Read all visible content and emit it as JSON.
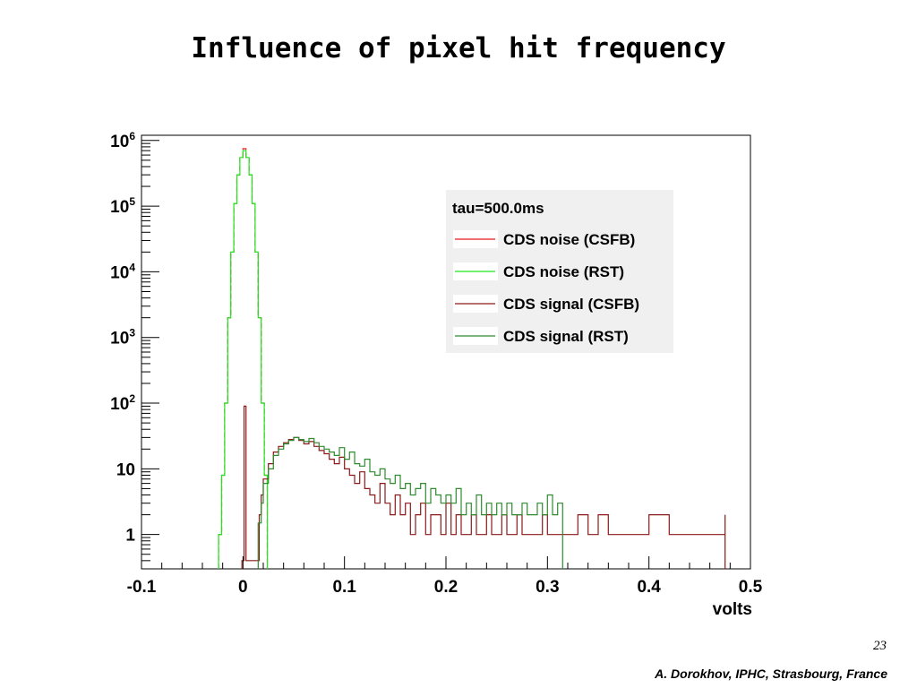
{
  "slide": {
    "title": "Influence of pixel hit frequency",
    "page_number": "23",
    "footer": "A. Dorokhov,  IPHC, Strasbourg, France"
  },
  "chart_data": {
    "type": "line",
    "title": "",
    "xlabel": "volts",
    "ylabel": "",
    "xlim": [
      -0.1,
      0.5
    ],
    "ylim": [
      0.3,
      1200000
    ],
    "y_scale": "log",
    "x_ticks": [
      "-0.1",
      "0",
      "0.1",
      "0.2",
      "0.3",
      "0.4",
      "0.5"
    ],
    "y_ticks": [
      {
        "value": 1,
        "base": "1",
        "exp": ""
      },
      {
        "value": 10,
        "base": "10",
        "exp": ""
      },
      {
        "value": 100,
        "base": "10",
        "exp": "2"
      },
      {
        "value": 1000,
        "base": "10",
        "exp": "3"
      },
      {
        "value": 10000,
        "base": "10",
        "exp": "4"
      },
      {
        "value": 100000,
        "base": "10",
        "exp": "5"
      },
      {
        "value": 1000000,
        "base": "10",
        "exp": "6"
      }
    ],
    "legend": {
      "position": "top-right",
      "header": "tau=500.0ms",
      "entries": [
        "CDS noise (CSFB)",
        "CDS noise (RST)",
        "CDS signal (CSFB)",
        "CDS signal (RST)"
      ]
    },
    "series": [
      {
        "name": "CDS noise (CSFB)",
        "color": "#e8161c",
        "dash": "6,3",
        "x": [
          -0.024,
          -0.021,
          -0.018,
          -0.015,
          -0.012,
          -0.009,
          -0.006,
          -0.003,
          0.0,
          0.003,
          0.006,
          0.009,
          0.012,
          0.015,
          0.018,
          0.021,
          0.024
        ],
        "y": [
          1,
          8,
          100,
          2000,
          20000,
          110000,
          300000,
          550000,
          750000,
          550000,
          300000,
          110000,
          20000,
          2000,
          100,
          8,
          1
        ]
      },
      {
        "name": "CDS noise (RST)",
        "color": "#1ee81e",
        "dash": "",
        "x": [
          -0.024,
          -0.021,
          -0.018,
          -0.015,
          -0.012,
          -0.009,
          -0.006,
          -0.003,
          0.0,
          0.003,
          0.006,
          0.009,
          0.012,
          0.015,
          0.018,
          0.021,
          0.024
        ],
        "y": [
          1,
          8,
          100,
          2000,
          20000,
          110000,
          300000,
          550000,
          700000,
          550000,
          300000,
          110000,
          20000,
          2000,
          100,
          8,
          1
        ]
      },
      {
        "name": "CDS signal (CSFB)",
        "color": "#8b1a1a",
        "dash": "",
        "x": [
          -0.001,
          0.001,
          0.003,
          0.013,
          0.016,
          0.018,
          0.02,
          0.025,
          0.03,
          0.035,
          0.04,
          0.045,
          0.05,
          0.055,
          0.06,
          0.065,
          0.07,
          0.075,
          0.08,
          0.085,
          0.09,
          0.095,
          0.1,
          0.105,
          0.11,
          0.115,
          0.12,
          0.125,
          0.13,
          0.135,
          0.14,
          0.145,
          0.15,
          0.155,
          0.16,
          0.165,
          0.17,
          0.175,
          0.18,
          0.185,
          0.19,
          0.195,
          0.2,
          0.205,
          0.21,
          0.215,
          0.22,
          0.225,
          0.23,
          0.235,
          0.24,
          0.245,
          0.25,
          0.255,
          0.26,
          0.265,
          0.27,
          0.275,
          0.28,
          0.285,
          0.29,
          0.295,
          0.3,
          0.305,
          0.31,
          0.33,
          0.34,
          0.35,
          0.36,
          0.38,
          0.4,
          0.42,
          0.44,
          0.46,
          0.475
        ],
        "y": [
          0.4,
          90,
          0.4,
          0.4,
          2,
          4,
          7,
          12,
          18,
          22,
          25,
          28,
          30,
          27,
          24,
          26,
          22,
          19,
          17,
          14,
          12,
          15,
          10,
          8,
          6,
          9,
          5,
          4,
          3,
          6,
          3,
          2,
          4,
          2,
          3,
          1,
          2,
          3,
          1,
          2,
          2,
          1,
          3,
          1,
          2,
          1,
          1,
          2,
          1,
          1,
          2,
          1,
          1,
          2,
          1,
          1,
          2,
          1,
          1,
          1,
          1,
          2,
          1,
          1,
          1,
          2,
          1,
          2,
          1,
          1,
          2,
          1,
          1,
          1,
          2
        ]
      },
      {
        "name": "CDS signal (RST)",
        "color": "#2e8b2e",
        "dash": "",
        "x": [
          0.015,
          0.018,
          0.02,
          0.025,
          0.03,
          0.035,
          0.04,
          0.045,
          0.05,
          0.055,
          0.06,
          0.065,
          0.07,
          0.075,
          0.08,
          0.085,
          0.09,
          0.095,
          0.1,
          0.105,
          0.11,
          0.115,
          0.12,
          0.125,
          0.13,
          0.135,
          0.14,
          0.145,
          0.15,
          0.155,
          0.16,
          0.165,
          0.17,
          0.175,
          0.18,
          0.185,
          0.19,
          0.195,
          0.2,
          0.205,
          0.21,
          0.215,
          0.22,
          0.225,
          0.23,
          0.235,
          0.24,
          0.245,
          0.25,
          0.255,
          0.26,
          0.265,
          0.27,
          0.275,
          0.28,
          0.285,
          0.29,
          0.295,
          0.3,
          0.305,
          0.31,
          0.315
        ],
        "y": [
          1.5,
          3,
          6,
          10,
          16,
          20,
          24,
          27,
          30,
          28,
          26,
          29,
          25,
          22,
          20,
          18,
          16,
          21,
          14,
          18,
          12,
          11,
          14,
          9,
          8,
          10,
          7,
          6,
          8,
          5,
          6,
          4,
          5,
          6,
          3,
          5,
          4,
          3,
          4,
          3,
          5,
          2,
          3,
          2,
          4,
          2,
          3,
          2,
          3,
          2,
          3,
          2,
          2,
          3,
          2,
          2,
          3,
          2,
          4,
          2,
          3,
          1
        ]
      }
    ]
  }
}
